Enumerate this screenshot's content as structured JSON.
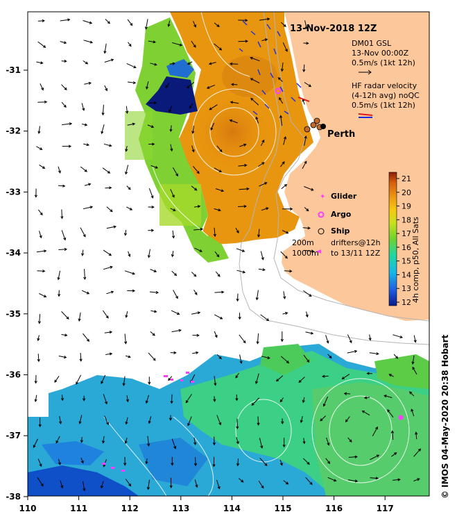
{
  "title": "13-Nov-2018 12Z",
  "model_info": {
    "line1": "DM01 GSL",
    "line2": "13-Nov 00:00Z",
    "line3": "0.5m/s (1kt 12h)"
  },
  "hf_radar": {
    "line1": "HF radar velocity",
    "line2": "(4-12h avg) noQC",
    "line3": "0.5m/s (1kt 12h)"
  },
  "place_label": "Perth",
  "legend": {
    "glider": "Glider",
    "argo": "Argo",
    "ship": "Ship",
    "depth1": "200m",
    "depth2": "1000m",
    "drifters1": "drifters@12h",
    "drifters2": "to 13/11 12Z"
  },
  "colorbar": {
    "title": "4h comp, p50, All Sats",
    "ticks": [
      "21",
      "20",
      "19",
      "18",
      "17",
      "16",
      "15",
      "14",
      "13",
      "12"
    ],
    "min": 12,
    "max": 21
  },
  "x_ticks": [
    "110",
    "111",
    "112",
    "113",
    "114",
    "115",
    "116",
    "117"
  ],
  "y_ticks": [
    "-31",
    "-32",
    "-33",
    "-34",
    "-35",
    "-36",
    "-37",
    "-38"
  ],
  "credit": "© IMOS 04-May-2020 20:38 Hobart",
  "colors": {
    "land": "#fcc89b",
    "sst_warm": "#e8950f",
    "sst_mid": "#7fd133",
    "sst_cool": "#2aa8d6",
    "radar_red": "#e01818",
    "radar_blue": "#1a2de0",
    "argo": "#ff3cff"
  }
}
